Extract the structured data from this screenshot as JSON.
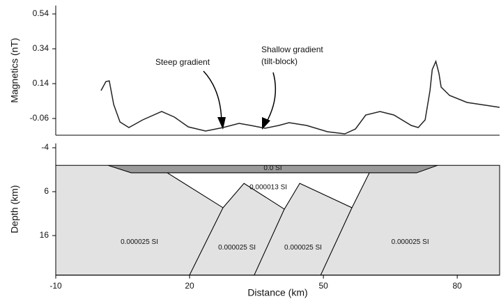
{
  "chart_data": [
    {
      "type": "line",
      "y_label": "Magnetics (nT)",
      "annotations": [
        "Steep gradient",
        "Shallow gradient",
        "(tilt-block)"
      ],
      "xlim": [
        -10,
        89.5
      ],
      "ylim": [
        -0.156,
        0.588
      ],
      "yticks": [
        -0.06,
        0.14,
        0.34,
        0.54
      ],
      "color": "#222222",
      "x": [
        0.16,
        1.25,
        2.0,
        3.0,
        4.4,
        6.4,
        9.5,
        13.75,
        16.6,
        19.7,
        23.6,
        27.5,
        31.1,
        33.75,
        36.9,
        40,
        42.3,
        46.25,
        50.9,
        54.8,
        57.2,
        59.5,
        62.7,
        65.8,
        69.7,
        71.25,
        72.8,
        73.9,
        74.4,
        75.2,
        75.9,
        76.4,
        78.3,
        82.2,
        89.5
      ],
      "values": [
        0.1,
        0.152,
        0.156,
        0.02,
        -0.08,
        -0.112,
        -0.068,
        -0.02,
        -0.052,
        -0.108,
        -0.132,
        -0.112,
        -0.088,
        -0.1,
        -0.116,
        -0.1,
        -0.084,
        -0.1,
        -0.136,
        -0.148,
        -0.12,
        -0.04,
        -0.02,
        -0.04,
        -0.1,
        -0.112,
        -0.068,
        0.1,
        0.22,
        0.268,
        0.2,
        0.12,
        0.072,
        0.032,
        0.004
      ]
    },
    {
      "type": "polygon",
      "x_label": "Distance (km)",
      "y_label": "Depth (km)",
      "xlim": [
        -10,
        89.5
      ],
      "ylim": [
        -5,
        25
      ],
      "y_inverted": true,
      "xticks": [
        -10,
        20,
        50,
        80
      ],
      "yticks": [
        -4,
        6,
        16
      ],
      "polygons": [
        {
          "label": "0.000025 SI",
          "color": "#e2e2e2",
          "x": [
            -10,
            1.7,
            6.9,
            15,
            27.5,
            20,
            -10
          ],
          "y": [
            0,
            0,
            1.7,
            1.7,
            9.65,
            25,
            25
          ]
        },
        {
          "label": "0.000025 SI",
          "color": "#e2e2e2",
          "x": [
            20,
            27.5,
            32.2,
            41.25,
            34.5
          ],
          "y": [
            25,
            9.65,
            4.1,
            9.97,
            25
          ]
        },
        {
          "label": "0.000025 SI",
          "color": "#e2e2e2",
          "x": [
            34.5,
            41.25,
            44.7,
            56.4,
            49.4
          ],
          "y": [
            25,
            9.97,
            4.1,
            9.65,
            25
          ]
        },
        {
          "label": "0.000025 SI",
          "color": "#e2e2e2",
          "x": [
            49.4,
            56.4,
            60.3,
            70.9,
            75.6,
            89.5,
            89.5
          ],
          "y": [
            25,
            9.65,
            1.7,
            1.7,
            0,
            0,
            25
          ]
        },
        {
          "label": "0.000013 SI",
          "color": "#ffffff",
          "x": [
            15,
            60.3,
            56.4,
            44.7,
            41.25,
            32.2,
            27.5
          ],
          "y": [
            1.7,
            1.7,
            9.65,
            4.1,
            9.97,
            4.1,
            9.65
          ]
        },
        {
          "label": "0.0 SI",
          "color": "#9a9a9a",
          "x": [
            1.7,
            75.6,
            70.9,
            6.9
          ],
          "y": [
            0,
            0,
            1.7,
            1.7
          ]
        }
      ]
    }
  ]
}
